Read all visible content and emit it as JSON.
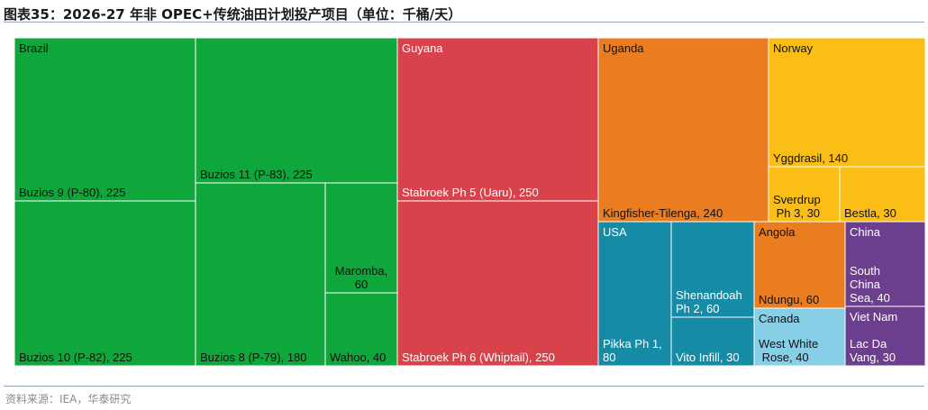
{
  "header": {
    "title": "图表35：2026-27 年非 OPEC+传统油田计划投产项目（单位：千桶/天）"
  },
  "footer": {
    "source": "资料来源：IEA，华泰研究"
  },
  "chart_data": {
    "type": "treemap",
    "unit": "千桶/天",
    "groups": [
      {
        "name": "Brazil",
        "color": "#0fa63b",
        "label_color": "#111111",
        "items": [
          {
            "label": "Buzios 9 (P-80), 225",
            "name": "Buzios 9 (P-80)",
            "value": 225
          },
          {
            "label": "Buzios 10 (P-82), 225",
            "name": "Buzios 10 (P-82)",
            "value": 225
          },
          {
            "label": "Buzios 11 (P-83), 225",
            "name": "Buzios 11 (P-83)",
            "value": 225
          },
          {
            "label": "Buzios 8 (P-79), 180",
            "name": "Buzios 8 (P-79)",
            "value": 180
          },
          {
            "label": "Maromba,\n60",
            "name": "Maromba",
            "value": 60
          },
          {
            "label": "Wahoo, 40",
            "name": "Wahoo",
            "value": 40
          }
        ]
      },
      {
        "name": "Guyana",
        "color": "#d8434b",
        "label_color": "#ffffff",
        "items": [
          {
            "label": "Stabroek Ph 5 (Uaru), 250",
            "name": "Stabroek Ph 5 (Uaru)",
            "value": 250
          },
          {
            "label": "Stabroek Ph 6 (Whiptail), 250",
            "name": "Stabroek Ph 6 (Whiptail)",
            "value": 250
          }
        ]
      },
      {
        "name": "Uganda",
        "color": "#ea7d1f",
        "label_color": "#111111",
        "items": [
          {
            "label": "Kingfisher-Tilenga, 240",
            "name": "Kingfisher-Tilenga",
            "value": 240
          }
        ]
      },
      {
        "name": "Norway",
        "color": "#fbbe17",
        "label_color": "#111111",
        "items": [
          {
            "label": "Yggdrasil, 140",
            "name": "Yggdrasil",
            "value": 140
          },
          {
            "label": "Sverdrup\n Ph 3, 30",
            "name": "Sverdrup Ph 3",
            "value": 30
          },
          {
            "label": "Bestla, 30",
            "name": "Bestla",
            "value": 30
          }
        ]
      },
      {
        "name": "USA",
        "color": "#168ba6",
        "label_color": "#ffffff",
        "items": [
          {
            "label": "Pikka Ph 1,\n80",
            "name": "Pikka Ph 1",
            "value": 80
          },
          {
            "label": "Shenandoah\nPh 2, 60",
            "name": "Shenandoah Ph 2",
            "value": 60
          },
          {
            "label": "Vito Infill, 30",
            "name": "Vito Infill",
            "value": 30
          }
        ]
      },
      {
        "name": "Angola",
        "color": "#ea7d1f",
        "label_color": "#111111",
        "items": [
          {
            "label": "Ndungu, 60",
            "name": "Ndungu",
            "value": 60
          }
        ]
      },
      {
        "name": "China",
        "color": "#6c3f8e",
        "label_color": "#ffffff",
        "items": [
          {
            "label": "South\nChina\nSea, 40",
            "name": "South China Sea",
            "value": 40
          }
        ]
      },
      {
        "name": "Canada",
        "color": "#87cfe6",
        "label_color": "#111111",
        "items": [
          {
            "label": "West White\n Rose, 40",
            "name": "West White Rose",
            "value": 40
          }
        ]
      },
      {
        "name": "Viet Nam",
        "color": "#6c3f8e",
        "label_color": "#ffffff",
        "items": [
          {
            "label": "Lac Da\nVang, 30",
            "name": "Lac Da Vang",
            "value": 30
          }
        ]
      }
    ]
  }
}
